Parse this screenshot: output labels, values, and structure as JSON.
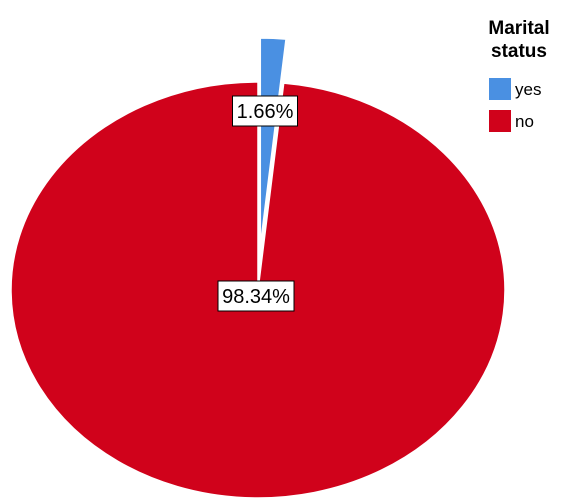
{
  "chart_data": {
    "type": "pie",
    "legend_title_lines": [
      "Marital",
      "status"
    ],
    "legend_position": "top-right",
    "labels": [
      "yes",
      "no"
    ],
    "values": [
      1.66,
      98.34
    ],
    "data_labels": [
      "1.66%",
      "98.34%"
    ],
    "colors": [
      "#4a90e2",
      "#d0021b"
    ],
    "exploded": [
      "yes"
    ]
  }
}
